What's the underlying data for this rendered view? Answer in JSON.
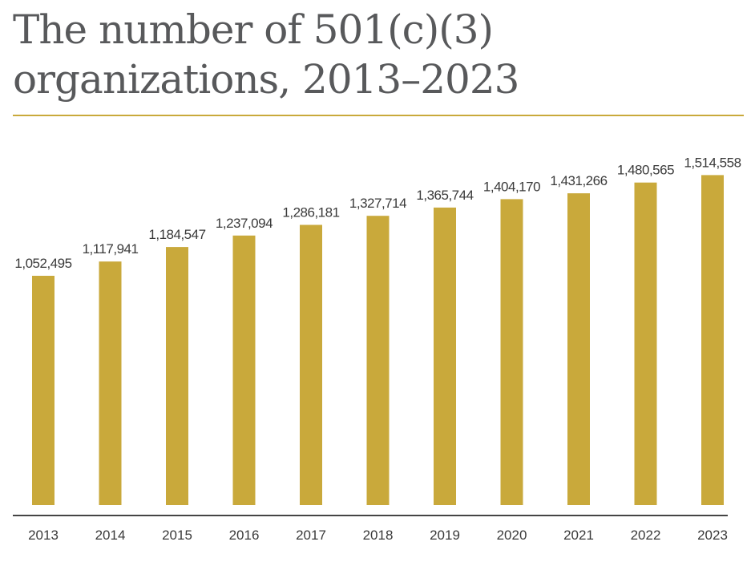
{
  "chart_data": {
    "type": "bar",
    "title": "The number of 501(c)(3) organizations, 2013–2023",
    "categories": [
      "2013",
      "2014",
      "2015",
      "2016",
      "2017",
      "2018",
      "2019",
      "2020",
      "2021",
      "2022",
      "2023"
    ],
    "values": [
      1052495,
      1117941,
      1184547,
      1237094,
      1286181,
      1327714,
      1365744,
      1404170,
      1431266,
      1480565,
      1514558
    ],
    "value_labels": [
      "1,052,495",
      "1,117,941",
      "1,184,547",
      "1,237,094",
      "1,286,181",
      "1,327,714",
      "1,365,744",
      "1,404,170",
      "1,431,266",
      "1,480,565",
      "1,514,558"
    ],
    "xlabel": "",
    "ylabel": "",
    "grid": false,
    "legend": "none",
    "bar_color": "#c9a93b",
    "axis_color": "#444444"
  }
}
